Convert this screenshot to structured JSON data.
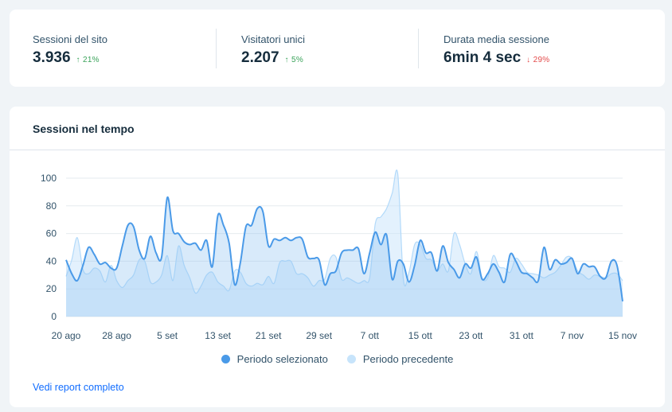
{
  "stats": [
    {
      "label": "Sessioni del sito",
      "value": "3.936",
      "change": "21%",
      "direction": "up"
    },
    {
      "label": "Visitatori unici",
      "value": "2.207",
      "change": "5%",
      "direction": "up"
    },
    {
      "label": "Durata media sessione",
      "value": "6min 4 sec",
      "change": "29%",
      "direction": "down"
    }
  ],
  "chart_card": {
    "title": "Sessioni nel tempo",
    "report_link": "Vedi report completo"
  },
  "legend": [
    {
      "label": "Periodo selezionato",
      "color": "#4a9ae8"
    },
    {
      "label": "Periodo precedente",
      "color": "#c7e4fb"
    }
  ],
  "chart_data": {
    "type": "area",
    "title": "Sessioni nel tempo",
    "x_tick_labels": [
      "20 ago",
      "28 ago",
      "5 set",
      "13 set",
      "21 set",
      "29 set",
      "7 ott",
      "15 ott",
      "23 ott",
      "31 ott",
      "7 nov",
      "15 nov"
    ],
    "ylim": [
      0,
      100
    ],
    "y_ticks": [
      0,
      20,
      40,
      60,
      80,
      100
    ],
    "grid": true,
    "legend_position": "bottom",
    "series": [
      {
        "name": "Periodo selezionato",
        "color": "#4a9ae8",
        "values": [
          41,
          31,
          26,
          37,
          50,
          45,
          38,
          39,
          35,
          35,
          51,
          66,
          65,
          48,
          42,
          58,
          46,
          43,
          86,
          62,
          60,
          54,
          52,
          53,
          48,
          55,
          36,
          73,
          66,
          53,
          23,
          39,
          65,
          66,
          78,
          76,
          51,
          56,
          55,
          57,
          55,
          57,
          56,
          43,
          42,
          41,
          23,
          31,
          33,
          46,
          48,
          48,
          49,
          31,
          46,
          61,
          52,
          59,
          27,
          40,
          38,
          25,
          37,
          55,
          46,
          46,
          33,
          51,
          39,
          34,
          28,
          38,
          35,
          43,
          27,
          31,
          38,
          32,
          25,
          45,
          40,
          32,
          31,
          28,
          26,
          50,
          34,
          41,
          38,
          39,
          42,
          31,
          38,
          36,
          36,
          29,
          28,
          40,
          37,
          11
        ]
      },
      {
        "name": "Periodo precedente",
        "color": "#c7e4fb",
        "values": [
          29,
          41,
          57,
          34,
          31,
          35,
          33,
          25,
          37,
          26,
          21,
          26,
          30,
          41,
          40,
          25,
          25,
          30,
          44,
          26,
          51,
          37,
          28,
          17,
          22,
          30,
          32,
          25,
          22,
          19,
          33,
          32,
          24,
          22,
          24,
          23,
          29,
          24,
          39,
          40,
          40,
          31,
          31,
          28,
          22,
          26,
          27,
          42,
          43,
          27,
          28,
          26,
          24,
          26,
          28,
          67,
          72,
          78,
          89,
          103,
          27,
          32,
          52,
          52,
          42,
          41,
          33,
          38,
          33,
          60,
          52,
          38,
          31,
          47,
          28,
          28,
          44,
          36,
          35,
          32,
          42,
          38,
          32,
          31,
          30,
          28,
          30,
          32,
          37,
          43,
          42,
          33,
          30,
          27,
          30,
          29,
          28,
          31,
          31,
          26
        ]
      }
    ]
  }
}
